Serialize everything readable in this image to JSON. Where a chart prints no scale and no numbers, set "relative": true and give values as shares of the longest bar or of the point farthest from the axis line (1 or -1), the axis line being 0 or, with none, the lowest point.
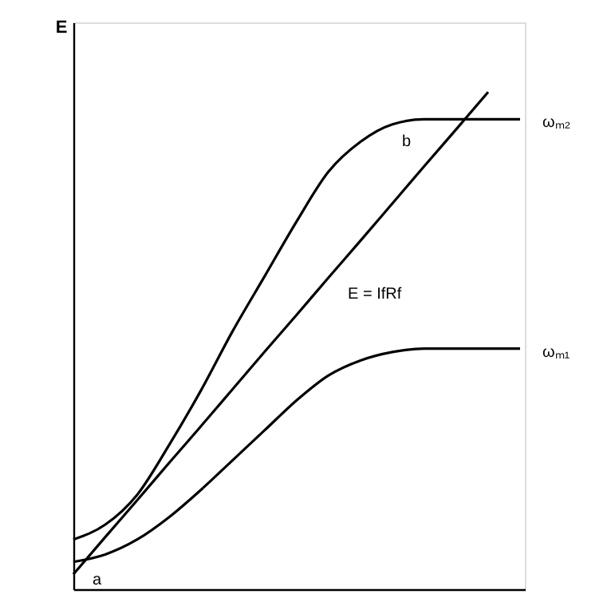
{
  "chart_data": {
    "type": "line",
    "relative": true,
    "ylabel": "E",
    "categories": [
      null,
      null,
      null,
      null,
      null,
      null,
      null,
      null,
      null,
      null,
      null,
      null,
      null,
      null,
      null
    ],
    "series": [
      {
        "name": "ωₘ₂",
        "color": "#000000",
        "values": [
          0.1,
          0.13,
          0.19,
          0.29,
          0.4,
          0.52,
          0.63,
          0.74,
          0.84,
          0.9,
          0.935,
          0.945,
          0.945,
          0.945,
          0.945
        ]
      },
      {
        "name": "ωₘ₁",
        "color": "#000000",
        "values": [
          0.055,
          0.07,
          0.1,
          0.145,
          0.2,
          0.26,
          0.32,
          0.38,
          0.43,
          0.46,
          0.477,
          0.484,
          0.484,
          0.484,
          0.484
        ]
      },
      {
        "name": "E = IfRf",
        "color": "#000000",
        "values": [
          0.03,
          0.105,
          0.179,
          0.254,
          0.328,
          0.403,
          0.478,
          0.552,
          0.627,
          0.701,
          0.776,
          0.851,
          0.925,
          1.0,
          null
        ]
      }
    ],
    "annotations": [
      "a",
      "b"
    ],
    "marker": "none",
    "line_style": "solid"
  }
}
